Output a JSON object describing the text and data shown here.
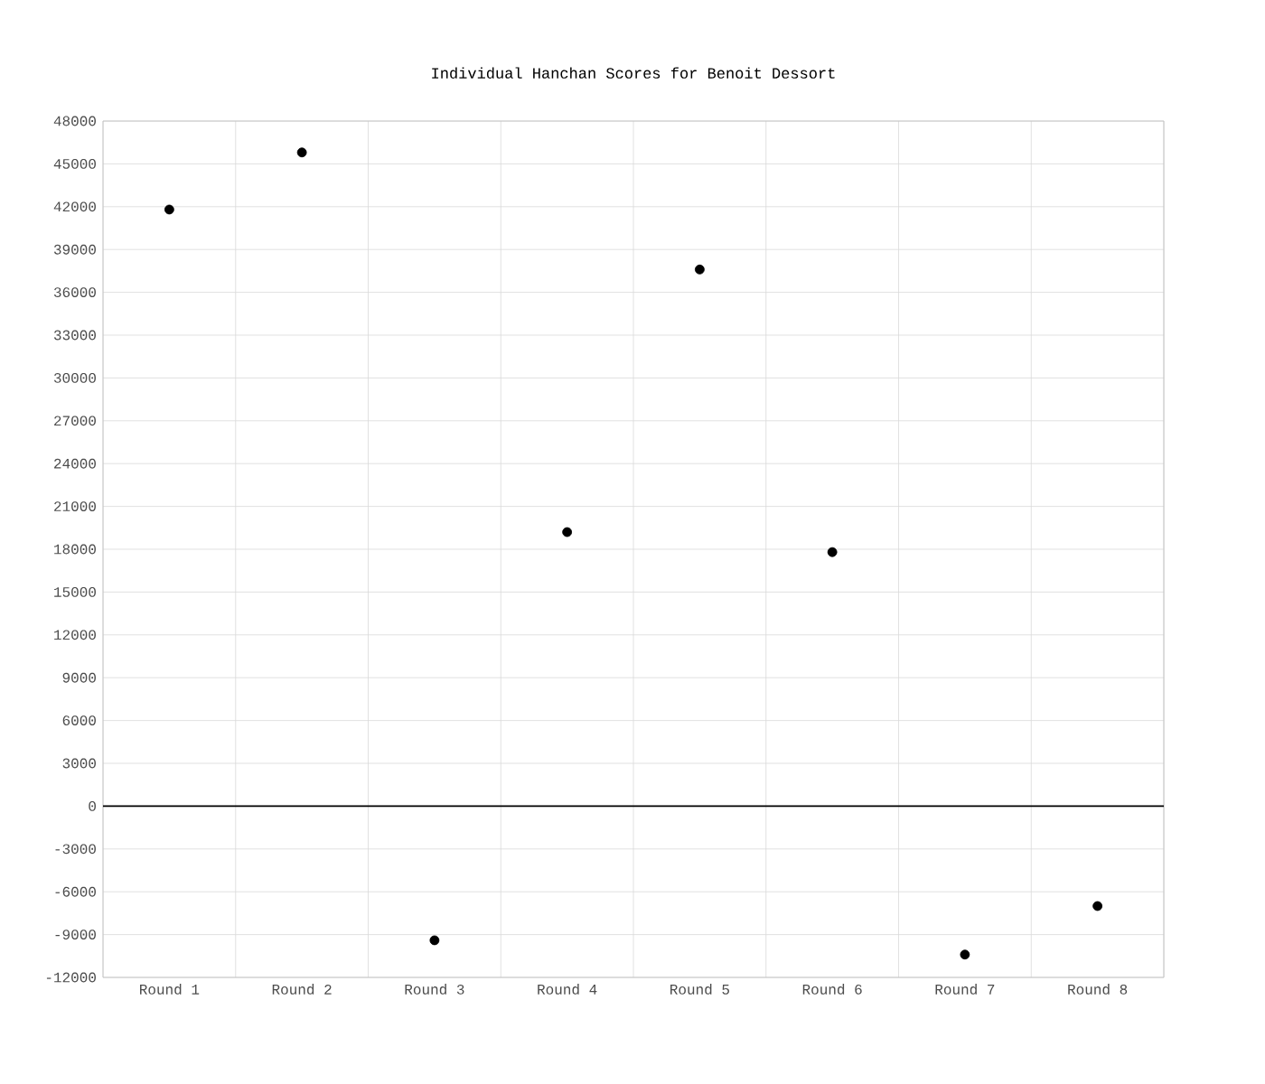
{
  "chart_data": {
    "type": "scatter",
    "title": "Individual Hanchan Scores for Benoit Dessort",
    "categories": [
      "Round 1",
      "Round 2",
      "Round 3",
      "Round 4",
      "Round 5",
      "Round 6",
      "Round 7",
      "Round 8"
    ],
    "values": [
      41800,
      45800,
      -9400,
      19200,
      37600,
      17800,
      -10400,
      -7000
    ],
    "color": "#000000",
    "marker": "circle",
    "grid": true,
    "ylim": [
      -12000,
      48000
    ],
    "yticks": [
      -12000,
      -9000,
      -6000,
      -3000,
      0,
      3000,
      6000,
      9000,
      12000,
      15000,
      18000,
      21000,
      24000,
      27000,
      30000,
      33000,
      36000,
      39000,
      42000,
      45000,
      48000
    ],
    "ref_lines": [
      {
        "axis": "y",
        "value": 0,
        "color": "#000000"
      }
    ]
  }
}
